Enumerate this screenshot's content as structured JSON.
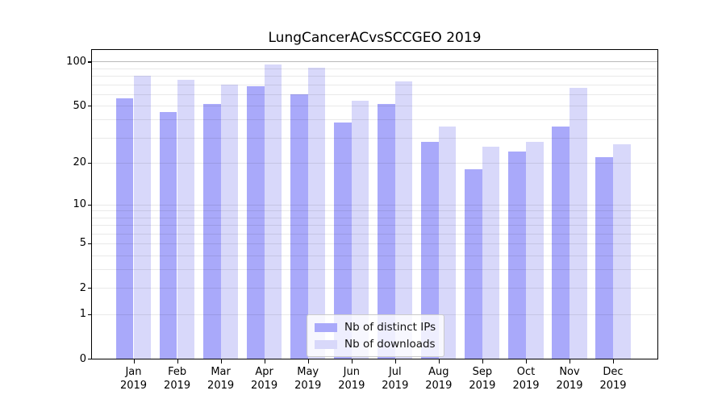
{
  "chart_data": {
    "type": "bar",
    "title": "LungCancerACvsSCCGEO 2019",
    "scale": "log1p",
    "categories": [
      "Jan 2019",
      "Feb 2019",
      "Mar 2019",
      "Apr 2019",
      "May 2019",
      "Jun 2019",
      "Jul 2019",
      "Aug 2019",
      "Sep 2019",
      "Oct 2019",
      "Nov 2019",
      "Dec 2019"
    ],
    "month_labels": [
      "Jan",
      "Feb",
      "Mar",
      "Apr",
      "May",
      "Jun",
      "Jul",
      "Aug",
      "Sep",
      "Oct",
      "Nov",
      "Dec"
    ],
    "year_label": "2019",
    "series": [
      {
        "name": "Nb of distinct IPs",
        "color": "#a9a9fa",
        "values": [
          56,
          45,
          51,
          68,
          60,
          38,
          51,
          28,
          18,
          24,
          36,
          22
        ]
      },
      {
        "name": "Nb of downloads",
        "color": "#d8d8fa",
        "values": [
          80,
          75,
          70,
          96,
          91,
          54,
          73,
          36,
          26,
          28,
          66,
          27
        ]
      }
    ],
    "y_ticks": [
      100,
      50,
      20,
      10,
      5,
      2,
      1,
      0
    ],
    "minor_gridlines": [
      1,
      2,
      3,
      4,
      5,
      6,
      7,
      8,
      9,
      10,
      20,
      30,
      40,
      50,
      60,
      70,
      80,
      90
    ],
    "emphasized_gridline": 100,
    "ylim": [
      0,
      120
    ],
    "xlabel": "",
    "ylabel": "",
    "grid": true,
    "legend_position": "lower center"
  }
}
